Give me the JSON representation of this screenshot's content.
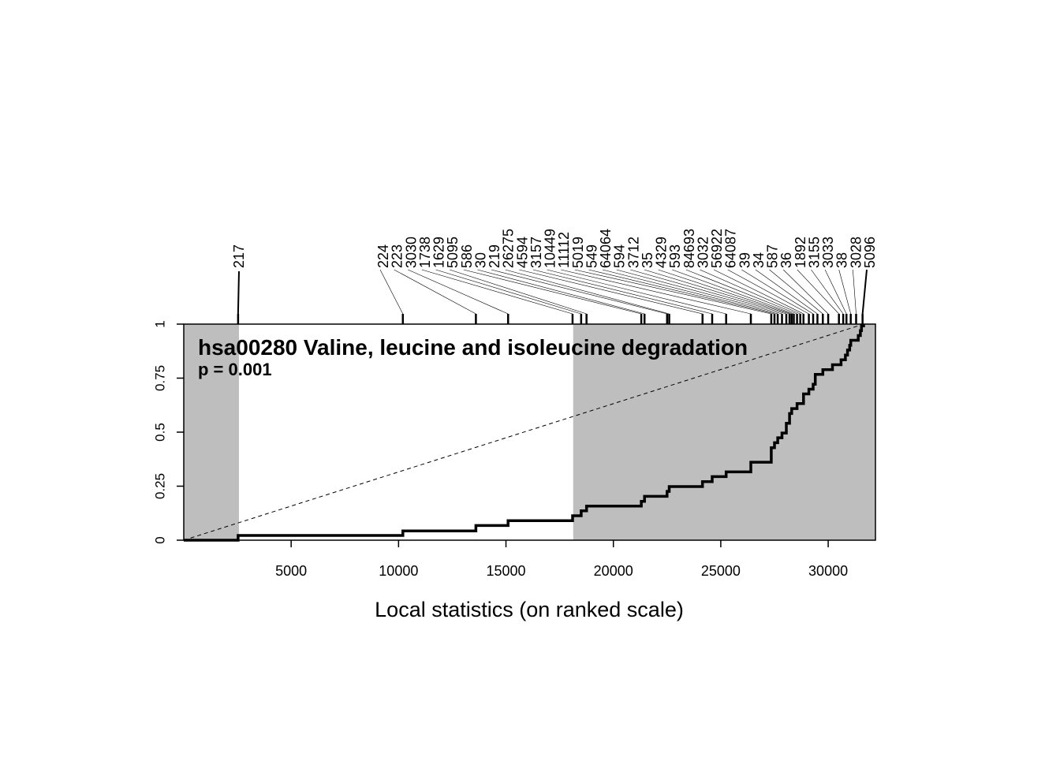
{
  "chart_data": {
    "type": "line",
    "title": "hsa00280 Valine, leucine and isoleucine degradation",
    "subtitle": "p = 0.001",
    "xlabel": "Local statistics (on ranked scale)",
    "ylabel": "",
    "xlim": [
      1,
      32200
    ],
    "ylim": [
      0,
      1
    ],
    "x_ticks": [
      5000,
      10000,
      15000,
      20000,
      25000,
      30000
    ],
    "y_ticks": [
      "0",
      "0.25",
      "0.5",
      "0.75",
      "1"
    ],
    "y_tick_values": [
      0,
      0.25,
      0.5,
      0.75,
      1
    ],
    "grid": false,
    "colors": {
      "shaded": "#bebebe",
      "line": "#000000"
    },
    "shaded_regions": [
      [
        1,
        2570
      ],
      [
        18130,
        32200
      ]
    ],
    "diagonal": {
      "from": [
        1,
        0
      ],
      "to": [
        31650,
        1
      ],
      "style": "dashed"
    },
    "gene_ids": [
      "217",
      "224",
      "223",
      "3030",
      "1738",
      "1629",
      "5095",
      "586",
      "30",
      "219",
      "26275",
      "4594",
      "3157",
      "10449",
      "11112",
      "5019",
      "549",
      "64064",
      "594",
      "3712",
      "35",
      "4329",
      "593",
      "84693",
      "3032",
      "56922",
      "64087",
      "39",
      "34",
      "587",
      "36",
      "1892",
      "3155",
      "3033",
      "38",
      "3028",
      "5096"
    ],
    "gene_positions": [
      2530,
      10200,
      13600,
      15100,
      18100,
      18500,
      18750,
      21300,
      21450,
      22500,
      22600,
      24150,
      24600,
      25250,
      26400,
      27350,
      27500,
      27650,
      27850,
      28050,
      28200,
      28300,
      28400,
      28550,
      28700,
      28850,
      29100,
      29300,
      29500,
      29750,
      30000,
      30500,
      30700,
      30850,
      31050,
      31300,
      31600
    ],
    "series": [
      {
        "values": [
          [
            1,
            0
          ],
          [
            2530,
            0
          ],
          [
            2530,
            0.022
          ],
          [
            10200,
            0.022
          ],
          [
            10200,
            0.043
          ],
          [
            13600,
            0.043
          ],
          [
            13600,
            0.068
          ],
          [
            15100,
            0.068
          ],
          [
            15100,
            0.09
          ],
          [
            18100,
            0.09
          ],
          [
            18100,
            0.113
          ],
          [
            18500,
            0.113
          ],
          [
            18500,
            0.136
          ],
          [
            18750,
            0.136
          ],
          [
            18750,
            0.158
          ],
          [
            21300,
            0.158
          ],
          [
            21300,
            0.18
          ],
          [
            21450,
            0.18
          ],
          [
            21450,
            0.203
          ],
          [
            22500,
            0.203
          ],
          [
            22500,
            0.226
          ],
          [
            22600,
            0.226
          ],
          [
            22600,
            0.248
          ],
          [
            24150,
            0.248
          ],
          [
            24150,
            0.271
          ],
          [
            24600,
            0.271
          ],
          [
            24600,
            0.294
          ],
          [
            25250,
            0.294
          ],
          [
            25250,
            0.316
          ],
          [
            26400,
            0.316
          ],
          [
            26400,
            0.361
          ],
          [
            27350,
            0.361
          ],
          [
            27350,
            0.428
          ],
          [
            27500,
            0.428
          ],
          [
            27500,
            0.451
          ],
          [
            27650,
            0.451
          ],
          [
            27650,
            0.474
          ],
          [
            27850,
            0.474
          ],
          [
            27850,
            0.496
          ],
          [
            28050,
            0.496
          ],
          [
            28050,
            0.541
          ],
          [
            28200,
            0.541
          ],
          [
            28200,
            0.586
          ],
          [
            28300,
            0.586
          ],
          [
            28300,
            0.609
          ],
          [
            28400,
            0.609
          ],
          [
            28550,
            0.609
          ],
          [
            28550,
            0.632
          ],
          [
            28700,
            0.632
          ],
          [
            28850,
            0.632
          ],
          [
            28850,
            0.654
          ],
          [
            28850,
            0.677
          ],
          [
            29100,
            0.677
          ],
          [
            29100,
            0.699
          ],
          [
            29300,
            0.699
          ],
          [
            29300,
            0.722
          ],
          [
            29400,
            0.722
          ],
          [
            29400,
            0.767
          ],
          [
            29750,
            0.767
          ],
          [
            29750,
            0.789
          ],
          [
            30200,
            0.789
          ],
          [
            30200,
            0.812
          ],
          [
            30600,
            0.812
          ],
          [
            30600,
            0.835
          ],
          [
            30800,
            0.835
          ],
          [
            30800,
            0.857
          ],
          [
            30900,
            0.857
          ],
          [
            30900,
            0.88
          ],
          [
            31000,
            0.88
          ],
          [
            31000,
            0.902
          ],
          [
            31050,
            0.902
          ],
          [
            31050,
            0.925
          ],
          [
            31400,
            0.925
          ],
          [
            31400,
            0.947
          ],
          [
            31500,
            0.947
          ],
          [
            31500,
            0.97
          ],
          [
            31550,
            0.97
          ],
          [
            31550,
            0.992
          ],
          [
            31650,
            0.992
          ],
          [
            31650,
            1.0
          ]
        ]
      }
    ]
  }
}
